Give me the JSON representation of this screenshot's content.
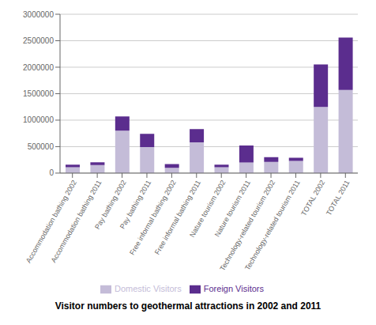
{
  "chart_data": {
    "type": "bar",
    "stacked": true,
    "title": "Visitor numbers to geothermal attractions in 2002 and 2011",
    "categories": [
      "Accommodation bathing 2002",
      "Accommodation bathing 2011",
      "Pay bathing 2002",
      "Pay bathing 2011",
      "Free informal bathing 2002",
      "Free informal bathing 2011",
      "Nature tourism 2002",
      "Nature tourism 2011",
      "Technology-related tourism 2002",
      "Technology-related tourism 2011",
      "TOTAL 2002",
      "TOTAL 2011"
    ],
    "series": [
      {
        "name": "Domestic Visitors",
        "color": "#c4bcd8",
        "values": [
          110000,
          150000,
          800000,
          490000,
          100000,
          580000,
          110000,
          200000,
          210000,
          230000,
          1250000,
          1570000
        ]
      },
      {
        "name": "Foreign Visitors",
        "color": "#5b2d8e",
        "values": [
          50000,
          55000,
          270000,
          250000,
          70000,
          250000,
          50000,
          320000,
          90000,
          60000,
          800000,
          990000
        ]
      }
    ],
    "ylim": [
      0,
      3000000
    ],
    "yticks": [
      0,
      500000,
      1000000,
      1500000,
      2000000,
      2500000,
      3000000
    ],
    "grid": true,
    "legend": "bottom"
  }
}
